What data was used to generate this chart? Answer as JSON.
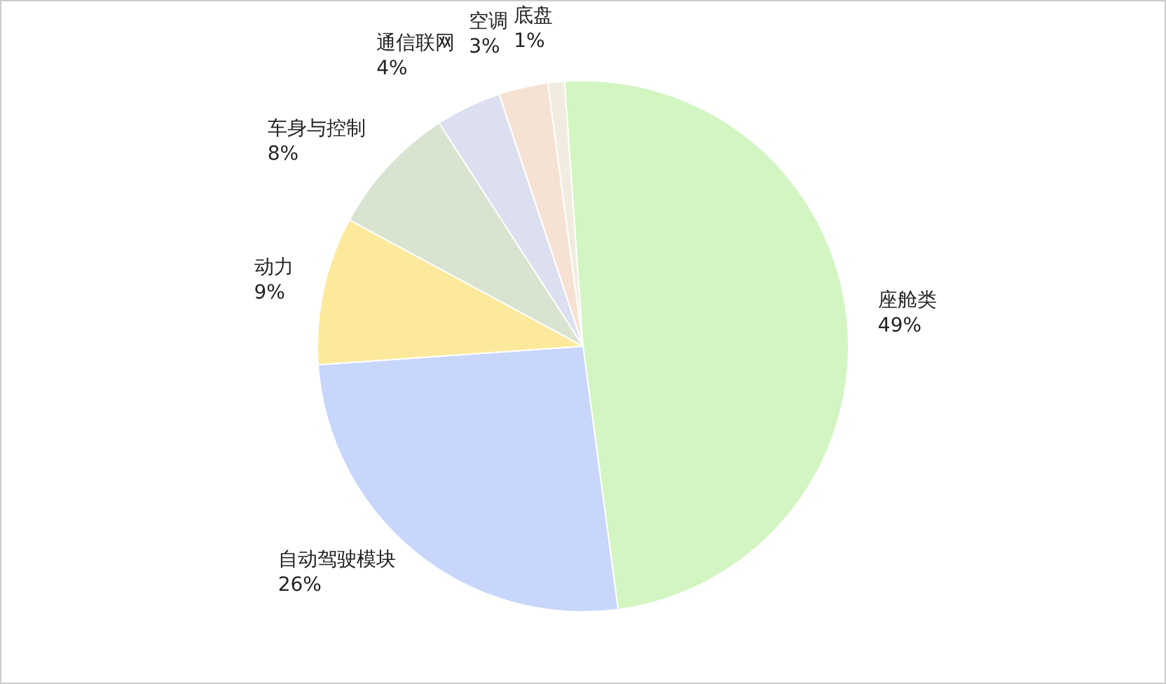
{
  "chart_data": {
    "type": "pie",
    "categories": [
      "座舱类",
      "自动驾驶模块",
      "动力",
      "车身与控制",
      "通信联网",
      "空调",
      "底盘"
    ],
    "values": [
      49,
      26,
      9,
      8,
      4,
      3,
      1
    ],
    "colors": [
      "#d2f5c2",
      "#c8d6fb",
      "#fde99c",
      "#d8e4d0",
      "#dcdff0",
      "#f6e2d2",
      "#f2ebe0"
    ],
    "value_labels": [
      "49%",
      "26%",
      "9%",
      "8%",
      "4%",
      "3%",
      "1%"
    ],
    "legend": false
  }
}
